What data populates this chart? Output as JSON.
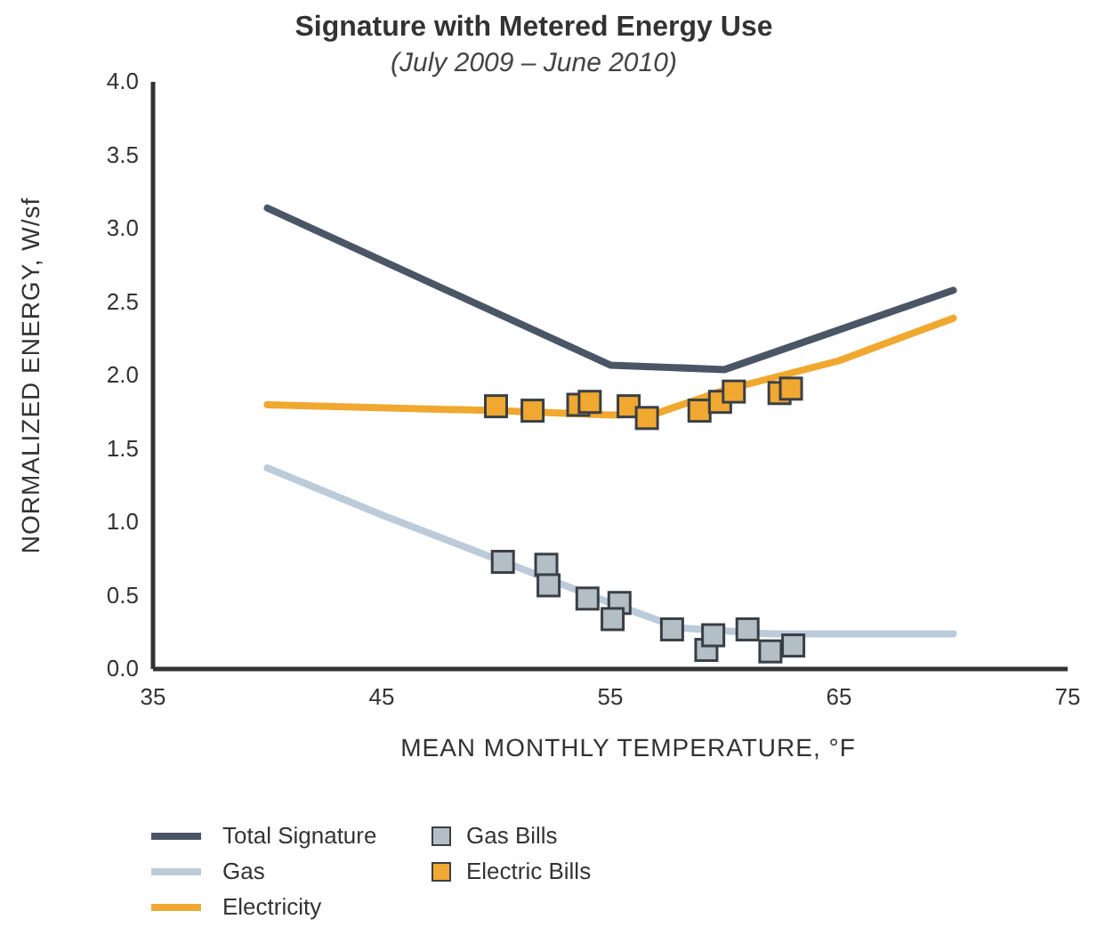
{
  "chart_data": {
    "type": "line",
    "title": "Signature with Metered Energy Use",
    "subtitle": "(July 2009 – June 2010)",
    "xlabel": "MEAN MONTHLY TEMPERATURE, °F",
    "ylabel": "NORMALIZED ENERGY, W/sf",
    "xlim": [
      35,
      75
    ],
    "xticks": [
      35,
      45,
      55,
      65,
      75
    ],
    "ylim": [
      0,
      4
    ],
    "yticks": [
      {
        "value": 0,
        "label": "0.0"
      },
      {
        "value": 0.5,
        "label": "0.5"
      },
      {
        "value": 1,
        "label": "1.0"
      },
      {
        "value": 1.5,
        "label": "1.5"
      },
      {
        "value": 2,
        "label": "2.0"
      },
      {
        "value": 2.5,
        "label": "2.5"
      },
      {
        "value": 3,
        "label": "3.0"
      },
      {
        "value": 3.5,
        "label": "3.5"
      },
      {
        "value": 4,
        "label": "4.0"
      }
    ],
    "grid": false,
    "legend": "bottom",
    "series": [
      {
        "name": "Total Signature",
        "color": "#4a5566",
        "x": [
          40,
          55,
          60,
          70
        ],
        "values": [
          3.14,
          2.07,
          2.04,
          2.58
        ]
      },
      {
        "name": "Gas",
        "color": "#bccbda",
        "x": [
          40,
          45,
          50,
          55,
          58,
          62,
          70
        ],
        "values": [
          1.37,
          1.05,
          0.75,
          0.45,
          0.28,
          0.24,
          0.24
        ]
      },
      {
        "name": "Electricity",
        "color": "#f0a830",
        "x": [
          40,
          50,
          55,
          57,
          60,
          65,
          70
        ],
        "values": [
          1.8,
          1.76,
          1.73,
          1.74,
          1.9,
          2.1,
          2.39
        ]
      },
      {
        "name": "Gas Bills",
        "type": "scatter",
        "marker": "square",
        "color": "#b3bec6",
        "x": [
          50.3,
          52.2,
          52.3,
          54.0,
          55.4,
          55.1,
          57.7,
          59.2,
          59.5,
          61.0,
          62.0,
          63.0
        ],
        "values": [
          0.73,
          0.71,
          0.57,
          0.48,
          0.45,
          0.34,
          0.27,
          0.13,
          0.23,
          0.27,
          0.12,
          0.16
        ]
      },
      {
        "name": "Electric Bills",
        "type": "scatter",
        "marker": "square",
        "color": "#f0a830",
        "x": [
          50.0,
          51.6,
          53.6,
          54.1,
          55.8,
          56.6,
          58.9,
          59.8,
          60.4,
          62.4,
          62.9
        ],
        "values": [
          1.79,
          1.76,
          1.8,
          1.82,
          1.79,
          1.71,
          1.76,
          1.82,
          1.89,
          1.88,
          1.91
        ]
      }
    ]
  }
}
